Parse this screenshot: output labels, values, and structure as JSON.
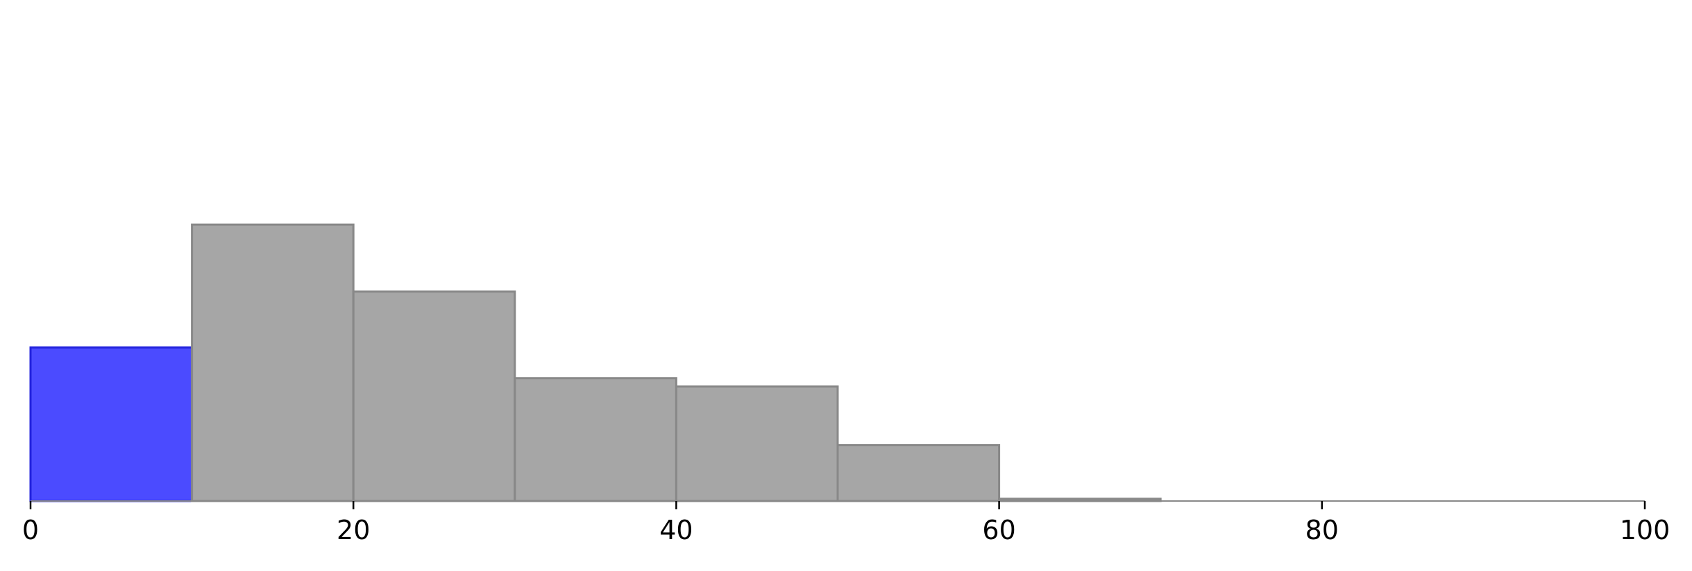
{
  "chart_data": {
    "type": "bar",
    "subtype": "histogram",
    "bin_edges": [
      0,
      10,
      20,
      30,
      40,
      50,
      60,
      70
    ],
    "values": [
      27.5,
      49.5,
      37.5,
      22,
      20.5,
      10,
      0.4
    ],
    "highlight_bins": [
      0
    ],
    "colors": {
      "highlight_fill": "#4b4bff",
      "highlight_stroke": "#2222dd",
      "bar_fill": "#a6a6a6",
      "bar_stroke": "#888888",
      "axis": "#000000"
    },
    "xlim": [
      0,
      100
    ],
    "ylim": [
      0,
      86
    ],
    "xticks": [
      0,
      20,
      40,
      60,
      80,
      100
    ],
    "xtick_labels": [
      "0",
      "20",
      "40",
      "60",
      "80",
      "100"
    ],
    "y_axis_visible": false,
    "grid": false,
    "title": "",
    "xlabel": "",
    "ylabel": ""
  }
}
